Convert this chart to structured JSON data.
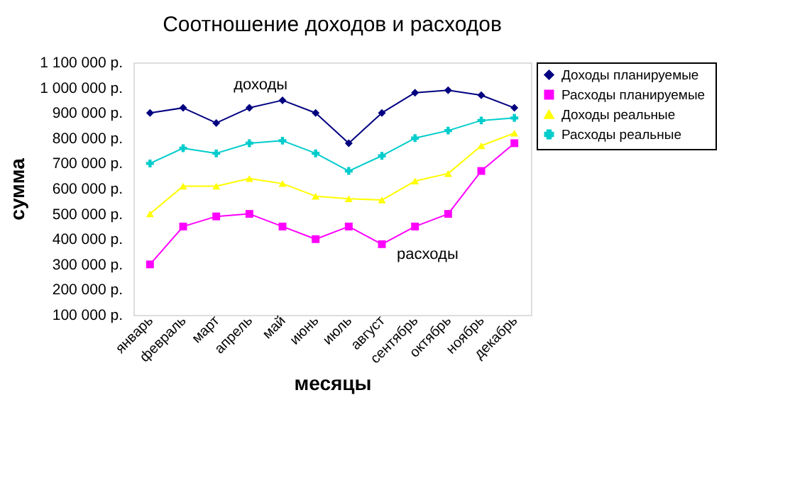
{
  "chart_data": {
    "type": "line",
    "title": "Соотношение доходов и расходов",
    "xlabel": "месяцы",
    "ylabel": "сумма",
    "categories": [
      "январь",
      "февраль",
      "март",
      "апрель",
      "май",
      "июнь",
      "июль",
      "август",
      "сентябрь",
      "октябрь",
      "ноябрь",
      "декабрь"
    ],
    "series": [
      {
        "name": "Доходы планируемые",
        "color": "#000080",
        "marker": "diamond",
        "values": [
          900000,
          920000,
          860000,
          920000,
          950000,
          900000,
          780000,
          900000,
          980000,
          990000,
          970000,
          920000
        ]
      },
      {
        "name": "Расходы  планируемые",
        "color": "#ff00ff",
        "marker": "square",
        "values": [
          300000,
          450000,
          490000,
          500000,
          450000,
          400000,
          450000,
          380000,
          450000,
          500000,
          670000,
          780000
        ]
      },
      {
        "name": "Доходы реальные",
        "color": "#ffff00",
        "marker": "triangle",
        "values": [
          500000,
          610000,
          610000,
          640000,
          620000,
          570000,
          560000,
          555000,
          630000,
          660000,
          770000,
          820000
        ]
      },
      {
        "name": "Расходы  реальные",
        "color": "#00cccc",
        "marker": "cross",
        "values": [
          700000,
          760000,
          740000,
          780000,
          790000,
          740000,
          670000,
          730000,
          800000,
          830000,
          870000,
          880000
        ]
      }
    ],
    "ylim": [
      100000,
      1100000
    ],
    "yticks": [
      {
        "value": 100000,
        "label": "100 000 р."
      },
      {
        "value": 200000,
        "label": "200 000 р."
      },
      {
        "value": 300000,
        "label": "300 000 р."
      },
      {
        "value": 400000,
        "label": "400 000 р."
      },
      {
        "value": 500000,
        "label": "500 000 р."
      },
      {
        "value": 600000,
        "label": "600 000 р."
      },
      {
        "value": 700000,
        "label": "700 000 р."
      },
      {
        "value": 800000,
        "label": "800 000 р."
      },
      {
        "value": 900000,
        "label": "900 000 р."
      },
      {
        "value": 1000000,
        "label": "1 000 000 р."
      },
      {
        "value": 1100000,
        "label": "1 100 000 р."
      }
    ],
    "annotations": [
      "доходы",
      "расходы"
    ],
    "legend": "top right",
    "line_style": "solid",
    "grid": false
  }
}
